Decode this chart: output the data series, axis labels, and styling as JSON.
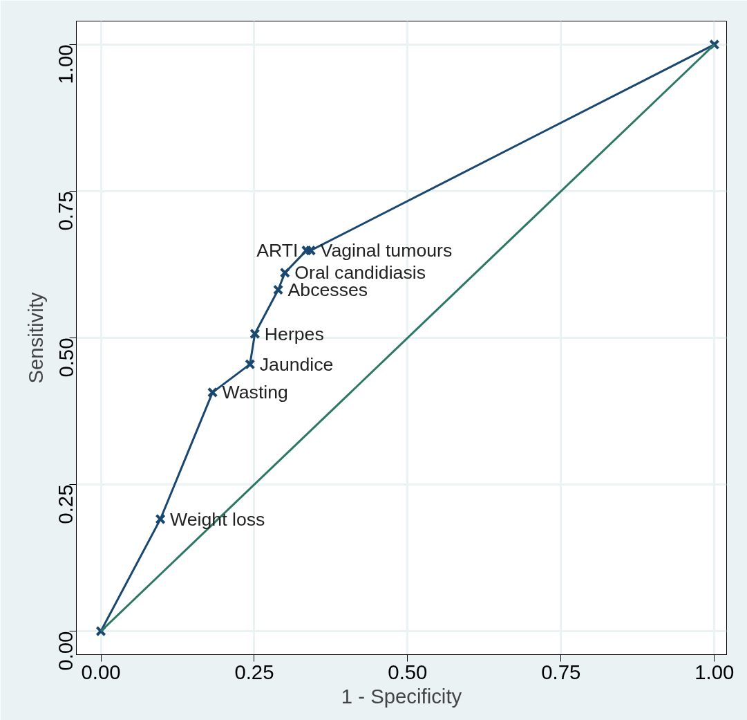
{
  "chart_data": {
    "type": "line",
    "xlabel": "1 - Specificity",
    "ylabel": "Sensitivity",
    "xlim": [
      -0.04,
      1.02
    ],
    "ylim": [
      -0.04,
      1.04
    ],
    "xticks": [
      {
        "value": 0,
        "label": "0.00"
      },
      {
        "value": 0.25,
        "label": "0.25"
      },
      {
        "value": 0.5,
        "label": "0.50"
      },
      {
        "value": 0.75,
        "label": "0.75"
      },
      {
        "value": 1,
        "label": "1.00"
      }
    ],
    "yticks": [
      {
        "value": 0,
        "label": "0.00"
      },
      {
        "value": 0.25,
        "label": "0.25"
      },
      {
        "value": 0.5,
        "label": "0.50"
      },
      {
        "value": 0.75,
        "label": "0.75"
      },
      {
        "value": 1,
        "label": "1.00"
      }
    ],
    "grid": true,
    "series": [
      {
        "color": "#1a476f",
        "marker": "cross",
        "x": [
          0,
          0.097,
          0.182,
          0.243,
          0.251,
          0.289,
          0.3,
          0.335,
          0.342,
          1
        ],
        "values": [
          0,
          0.191,
          0.407,
          0.455,
          0.507,
          0.582,
          0.611,
          0.649,
          0.649,
          1
        ]
      },
      {
        "color": "#2d7766",
        "marker": "none",
        "x": [
          0,
          1
        ],
        "values": [
          0,
          1
        ]
      }
    ],
    "annotations": [
      {
        "text": "Weight loss",
        "x": 0.097,
        "y": 0.191
      },
      {
        "text": "Wasting",
        "x": 0.182,
        "y": 0.407
      },
      {
        "text": "Jaundice",
        "x": 0.243,
        "y": 0.455
      },
      {
        "text": "Herpes",
        "x": 0.251,
        "y": 0.507
      },
      {
        "text": "Abcesses",
        "x": 0.289,
        "y": 0.582
      },
      {
        "text": "Oral candidiasis",
        "x": 0.3,
        "y": 0.611
      },
      {
        "text": "ARTI",
        "x": 0.335,
        "y": 0.649
      },
      {
        "text": "Vaginal tumours",
        "x": 0.342,
        "y": 0.649
      }
    ]
  }
}
